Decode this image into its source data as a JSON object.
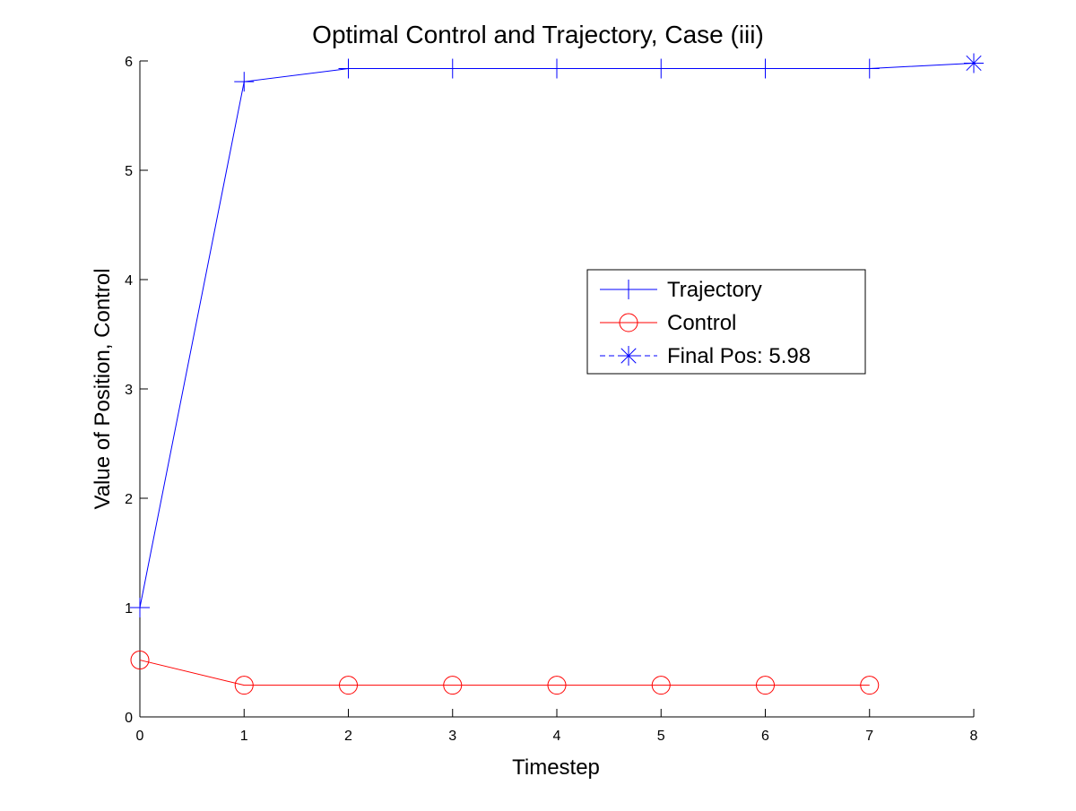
{
  "chart_data": {
    "type": "line",
    "title": "Optimal Control and Trajectory, Case (iii)",
    "xlabel": "Timestep",
    "ylabel": "Value of Position, Control",
    "xlim": [
      0,
      8
    ],
    "ylim": [
      0,
      6
    ],
    "xticks": [
      "0",
      "1",
      "2",
      "3",
      "4",
      "5",
      "6",
      "7",
      "8"
    ],
    "yticks": [
      "0",
      "1",
      "2",
      "3",
      "4",
      "5",
      "6"
    ],
    "grid": false,
    "legend_position": "center-right",
    "series": [
      {
        "name": "Trajectory",
        "color": "#0000ff",
        "marker": "plus",
        "line": "solid",
        "x": [
          0,
          1,
          2,
          3,
          4,
          5,
          6,
          7,
          8
        ],
        "y": [
          1.0,
          5.81,
          5.93,
          5.93,
          5.93,
          5.93,
          5.93,
          5.93,
          5.98
        ]
      },
      {
        "name": "Control",
        "color": "#ff0000",
        "marker": "circle",
        "line": "solid",
        "x": [
          0,
          1,
          2,
          3,
          4,
          5,
          6,
          7
        ],
        "y": [
          0.52,
          0.29,
          0.29,
          0.29,
          0.29,
          0.29,
          0.29,
          0.29
        ]
      },
      {
        "name": "Final Pos:  5.98",
        "color": "#0000ff",
        "marker": "star",
        "line": "dashed",
        "x": [
          8
        ],
        "y": [
          5.98
        ]
      }
    ]
  }
}
